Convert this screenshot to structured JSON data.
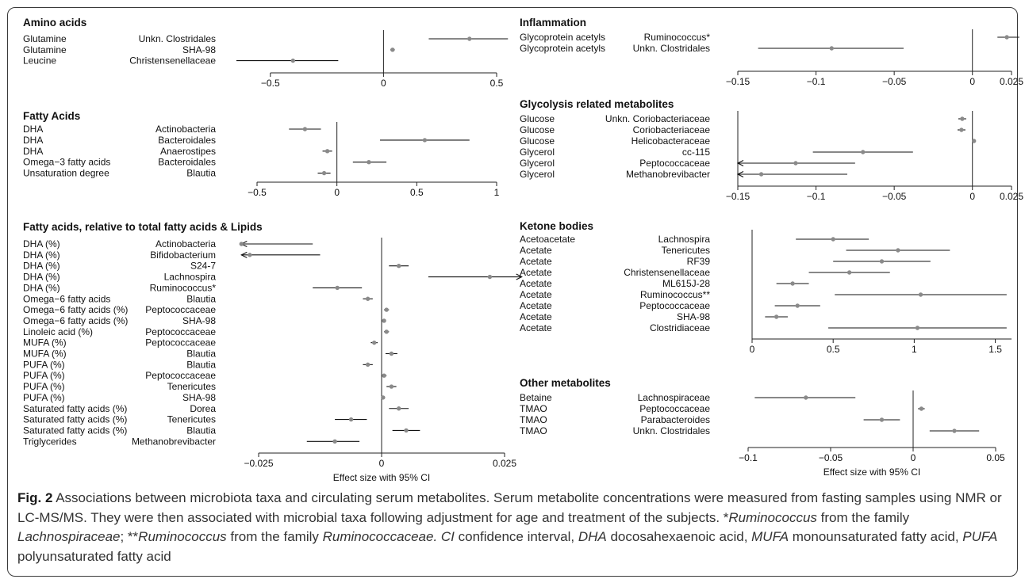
{
  "axis_title": "Effect size with 95% CI",
  "caption": {
    "label": "Fig. 2",
    "text": " Associations between microbiota taxa and circulating serum metabolites. Serum metabolite concentrations were measured from fasting samples using NMR or LC-MS/MS. They were then associated with microbial taxa following adjustment for age and treatment of the subjects. *",
    "i1": "Ruminococcus",
    "t2": " from the family ",
    "i2": "Lachnospiraceae",
    "t3": "; **",
    "i3": "Ruminococcus",
    "t4": " from the family ",
    "i4": "Ruminococcaceae.",
    "t5": " ",
    "i5": "CI",
    "t6": " confidence interval, ",
    "i6": "DHA",
    "t7": " docosahexaenoic acid, ",
    "i7": "MUFA",
    "t8": " monounsaturated fatty acid, ",
    "i8": "PUFA",
    "t9": " polyunsaturated fatty acid"
  },
  "chart_data": [
    {
      "type": "forest",
      "title": "Amino acids",
      "xlim": [
        -0.65,
        0.5
      ],
      "ticks": [
        -0.5,
        0,
        0.5
      ],
      "tick_labels": [
        "−0.5",
        "0",
        "0.5"
      ],
      "rows": [
        {
          "metabolite": "Glutamine",
          "taxon": "Unkn. Clostridales",
          "est": 0.38,
          "lo": 0.2,
          "hi": 0.55
        },
        {
          "metabolite": "Glutamine",
          "taxon": "SHA-98",
          "est": 0.04,
          "lo": 0.03,
          "hi": 0.05
        },
        {
          "metabolite": "Leucine",
          "taxon": "Christensenellaceae",
          "est": -0.4,
          "lo": -0.65,
          "hi": -0.2
        }
      ]
    },
    {
      "type": "forest",
      "title": "Fatty Acids",
      "xlim": [
        -0.5,
        1
      ],
      "ticks": [
        -0.5,
        0,
        0.5,
        1
      ],
      "tick_labels": [
        "−0.5",
        "0",
        "0.5",
        "1"
      ],
      "rows": [
        {
          "metabolite": "DHA",
          "taxon": "Actinobacteria",
          "est": -0.2,
          "lo": -0.3,
          "hi": -0.1
        },
        {
          "metabolite": "DHA",
          "taxon": "Bacteroidales",
          "est": 0.55,
          "lo": 0.27,
          "hi": 0.83
        },
        {
          "metabolite": "DHA",
          "taxon": "Anaerostipes",
          "est": -0.06,
          "lo": -0.09,
          "hi": -0.03
        },
        {
          "metabolite": "Omega−3 fatty acids",
          "taxon": "Bacteroidales",
          "est": 0.2,
          "lo": 0.1,
          "hi": 0.31
        },
        {
          "metabolite": "Unsaturation degree",
          "taxon": "Blautia",
          "est": -0.08,
          "lo": -0.12,
          "hi": -0.04
        }
      ]
    },
    {
      "type": "forest",
      "title": "Fatty acids, relative to total fatty acids & Lipids",
      "xlim": [
        -0.025,
        0.025
      ],
      "ticks": [
        -0.025,
        0,
        0.025
      ],
      "tick_labels": [
        "−0.025",
        "0",
        "0.025"
      ],
      "rows": [
        {
          "metabolite": "DHA (%)",
          "taxon": "Actinobacteria",
          "est": -0.0285,
          "lo": -0.0285,
          "hi": -0.014,
          "arrow_left": true
        },
        {
          "metabolite": "DHA (%)",
          "taxon": "Bifidobacterium",
          "est": -0.0268,
          "lo": -0.0285,
          "hi": -0.0125,
          "arrow_left": true
        },
        {
          "metabolite": "DHA (%)",
          "taxon": "S24-7",
          "est": 0.0035,
          "lo": 0.0015,
          "hi": 0.0055
        },
        {
          "metabolite": "DHA (%)",
          "taxon": "Lachnospira",
          "est": 0.022,
          "lo": 0.0095,
          "hi": 0.0285,
          "arrow_right": true
        },
        {
          "metabolite": "DHA (%)",
          "taxon": "Ruminococcus*",
          "est": -0.009,
          "lo": -0.014,
          "hi": -0.004
        },
        {
          "metabolite": "Omega−6 fatty acids",
          "taxon": "Blautia",
          "est": -0.0028,
          "lo": -0.0038,
          "hi": -0.0018
        },
        {
          "metabolite": "Omega−6 fatty acids (%)",
          "taxon": "Peptococcaceae",
          "est": 0.001,
          "lo": 0.0005,
          "hi": 0.0015
        },
        {
          "metabolite": "Omega−6 fatty acids (%)",
          "taxon": "SHA-98",
          "est": 0.0005,
          "lo": 0.0002,
          "hi": 0.0008
        },
        {
          "metabolite": "Linoleic acid (%)",
          "taxon": "Peptococcaceae",
          "est": 0.001,
          "lo": 0.0005,
          "hi": 0.0015
        },
        {
          "metabolite": "MUFA (%)",
          "taxon": "Peptococcaceae",
          "est": -0.0015,
          "lo": -0.0022,
          "hi": -0.0008
        },
        {
          "metabolite": "MUFA (%)",
          "taxon": "Blautia",
          "est": 0.002,
          "lo": 0.0008,
          "hi": 0.0032
        },
        {
          "metabolite": "PUFA (%)",
          "taxon": "Blautia",
          "est": -0.0028,
          "lo": -0.0038,
          "hi": -0.0018
        },
        {
          "metabolite": "PUFA (%)",
          "taxon": "Peptococcaceae",
          "est": 0.0005,
          "lo": 0.0,
          "hi": 0.001
        },
        {
          "metabolite": "PUFA (%)",
          "taxon": "Tenericutes",
          "est": 0.002,
          "lo": 0.001,
          "hi": 0.003
        },
        {
          "metabolite": "PUFA (%)",
          "taxon": "SHA-98",
          "est": 0.0003,
          "lo": 0.0,
          "hi": 0.0006
        },
        {
          "metabolite": "Saturated fatty acids (%)",
          "taxon": "Dorea",
          "est": 0.0035,
          "lo": 0.0015,
          "hi": 0.0055
        },
        {
          "metabolite": "Saturated fatty acids (%)",
          "taxon": "Tenericutes",
          "est": -0.0062,
          "lo": -0.0095,
          "hi": -0.003
        },
        {
          "metabolite": "Saturated fatty acids (%)",
          "taxon": "Blautia",
          "est": 0.005,
          "lo": 0.0022,
          "hi": 0.0078
        },
        {
          "metabolite": "Triglycerides",
          "taxon": "Methanobrevibacter",
          "est": -0.0095,
          "lo": -0.0152,
          "hi": -0.0045
        }
      ]
    },
    {
      "type": "forest",
      "title": "Inflammation",
      "xlim": [
        -0.15,
        0.025
      ],
      "ticks": [
        -0.15,
        -0.1,
        -0.05,
        0,
        0.025
      ],
      "tick_labels": [
        "−0.15",
        "−0.1",
        "−0.05",
        "0",
        "0.025"
      ],
      "rows": [
        {
          "metabolite": "Glycoprotein acetyls",
          "taxon": "Ruminococcus*",
          "est": 0.022,
          "lo": 0.016,
          "hi": 0.03
        },
        {
          "metabolite": "Glycoprotein acetyls",
          "taxon": "Unkn. Clostridales",
          "est": -0.09,
          "lo": -0.137,
          "hi": -0.044
        }
      ]
    },
    {
      "type": "forest",
      "title": "Glycolysis related metabolites",
      "xlim": [
        -0.15,
        0.025
      ],
      "ticks": [
        -0.15,
        -0.1,
        -0.05,
        0,
        0.025
      ],
      "tick_labels": [
        "−0.15",
        "−0.1",
        "−0.05",
        "0",
        "0.025"
      ],
      "rows": [
        {
          "metabolite": "Glucose",
          "taxon": "Unkn. Coriobacteriaceae",
          "est": -0.0065,
          "lo": -0.009,
          "hi": -0.004
        },
        {
          "metabolite": "Glucose",
          "taxon": "Coriobacteriaceae",
          "est": -0.007,
          "lo": -0.0095,
          "hi": -0.0045
        },
        {
          "metabolite": "Glucose",
          "taxon": "Helicobacteraceae",
          "est": 0.001,
          "lo": 0.0005,
          "hi": 0.0015
        },
        {
          "metabolite": "Glycerol",
          "taxon": "cc-115",
          "est": -0.07,
          "lo": -0.102,
          "hi": -0.038
        },
        {
          "metabolite": "Glycerol",
          "taxon": "Peptococcaceae",
          "est": -0.113,
          "lo": -0.15,
          "hi": -0.075,
          "arrow_left": true
        },
        {
          "metabolite": "Glycerol",
          "taxon": "Methanobrevibacter",
          "est": -0.135,
          "lo": -0.15,
          "hi": -0.08,
          "arrow_left": true
        }
      ]
    },
    {
      "type": "forest",
      "title": "Ketone bodies",
      "xlim": [
        0,
        1.6
      ],
      "ticks": [
        0,
        0.5,
        1,
        1.5
      ],
      "tick_labels": [
        "0",
        "0.5",
        "1",
        "1.5"
      ],
      "rows": [
        {
          "metabolite": "Acetoacetate",
          "taxon": "Lachnospira",
          "est": 0.5,
          "lo": 0.27,
          "hi": 0.72
        },
        {
          "metabolite": "Acetate",
          "taxon": "Tenericutes",
          "est": 0.9,
          "lo": 0.58,
          "hi": 1.22
        },
        {
          "metabolite": "Acetate",
          "taxon": "RF39",
          "est": 0.8,
          "lo": 0.5,
          "hi": 1.1
        },
        {
          "metabolite": "Acetate",
          "taxon": "Christensenellaceae",
          "est": 0.6,
          "lo": 0.35,
          "hi": 0.85
        },
        {
          "metabolite": "Acetate",
          "taxon": "ML615J-28",
          "est": 0.25,
          "lo": 0.15,
          "hi": 0.35
        },
        {
          "metabolite": "Acetate",
          "taxon": "Ruminococcus**",
          "est": 1.04,
          "lo": 0.51,
          "hi": 1.57
        },
        {
          "metabolite": "Acetate",
          "taxon": "Peptococcaceae",
          "est": 0.28,
          "lo": 0.14,
          "hi": 0.42
        },
        {
          "metabolite": "Acetate",
          "taxon": "SHA-98",
          "est": 0.15,
          "lo": 0.08,
          "hi": 0.22
        },
        {
          "metabolite": "Acetate",
          "taxon": "Clostridiaceae",
          "est": 1.02,
          "lo": 0.47,
          "hi": 1.57
        }
      ]
    },
    {
      "type": "forest",
      "title": "Other metabolites",
      "xlim": [
        -0.1,
        0.05
      ],
      "ticks": [
        -0.1,
        -0.05,
        0,
        0.05
      ],
      "tick_labels": [
        "−0.1",
        "−0.05",
        "0",
        "0.05"
      ],
      "rows": [
        {
          "metabolite": "Betaine",
          "taxon": "Lachnospiraceae",
          "est": -0.065,
          "lo": -0.096,
          "hi": -0.035
        },
        {
          "metabolite": "TMAO",
          "taxon": "Peptococcaceae",
          "est": 0.005,
          "lo": 0.003,
          "hi": 0.007
        },
        {
          "metabolite": "TMAO",
          "taxon": "Parabacteroides",
          "est": -0.019,
          "lo": -0.03,
          "hi": -0.008
        },
        {
          "metabolite": "TMAO",
          "taxon": "Unkn. Clostridales",
          "est": 0.025,
          "lo": 0.01,
          "hi": 0.04
        }
      ]
    }
  ]
}
